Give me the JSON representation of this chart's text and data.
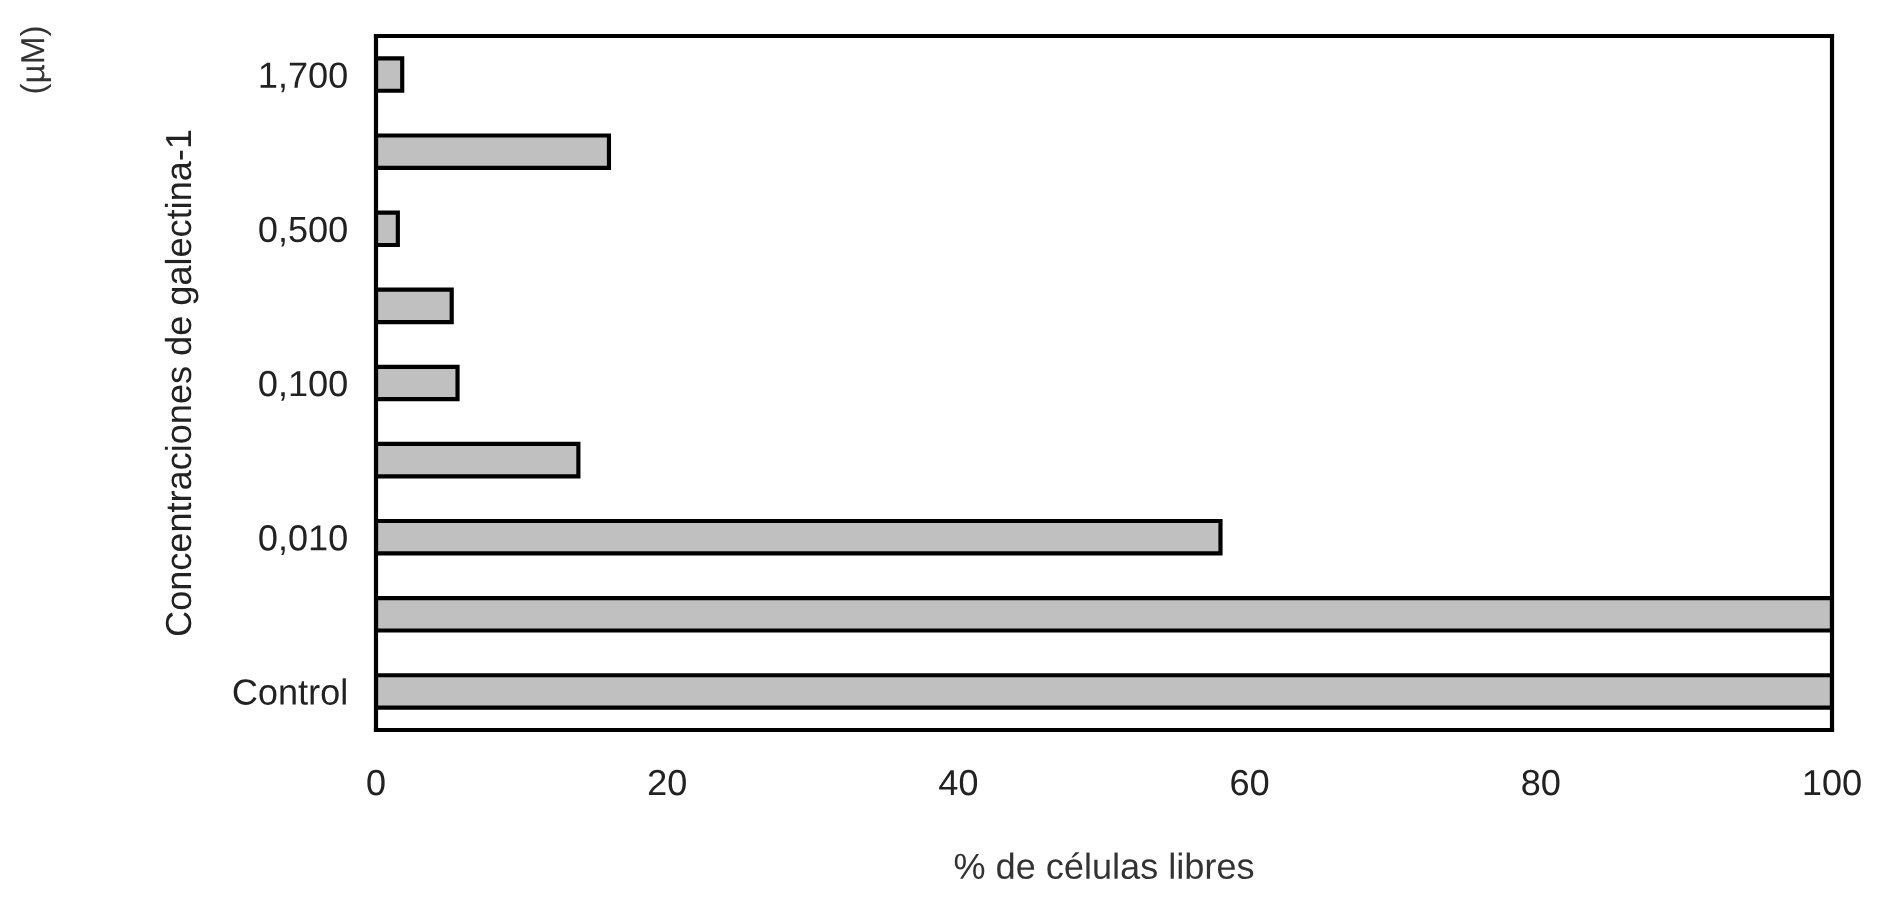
{
  "chart_data": {
    "type": "bar",
    "orientation": "horizontal",
    "xlabel": "% de células libres",
    "ylabel": "Concentraciones de galectina-1",
    "annotations": [
      "(µM)"
    ],
    "categories": [
      "1,700",
      null,
      "0,500",
      null,
      "0,100",
      null,
      "0,010",
      null,
      "Control"
    ],
    "values": [
      1.8,
      16,
      1.5,
      5.2,
      5.6,
      13.9,
      58,
      100,
      100
    ],
    "color": "#c0c0c0",
    "xlim": [
      0,
      100
    ],
    "xticks": [
      0,
      20,
      40,
      60,
      80,
      100
    ],
    "grid": false,
    "legend": false
  }
}
